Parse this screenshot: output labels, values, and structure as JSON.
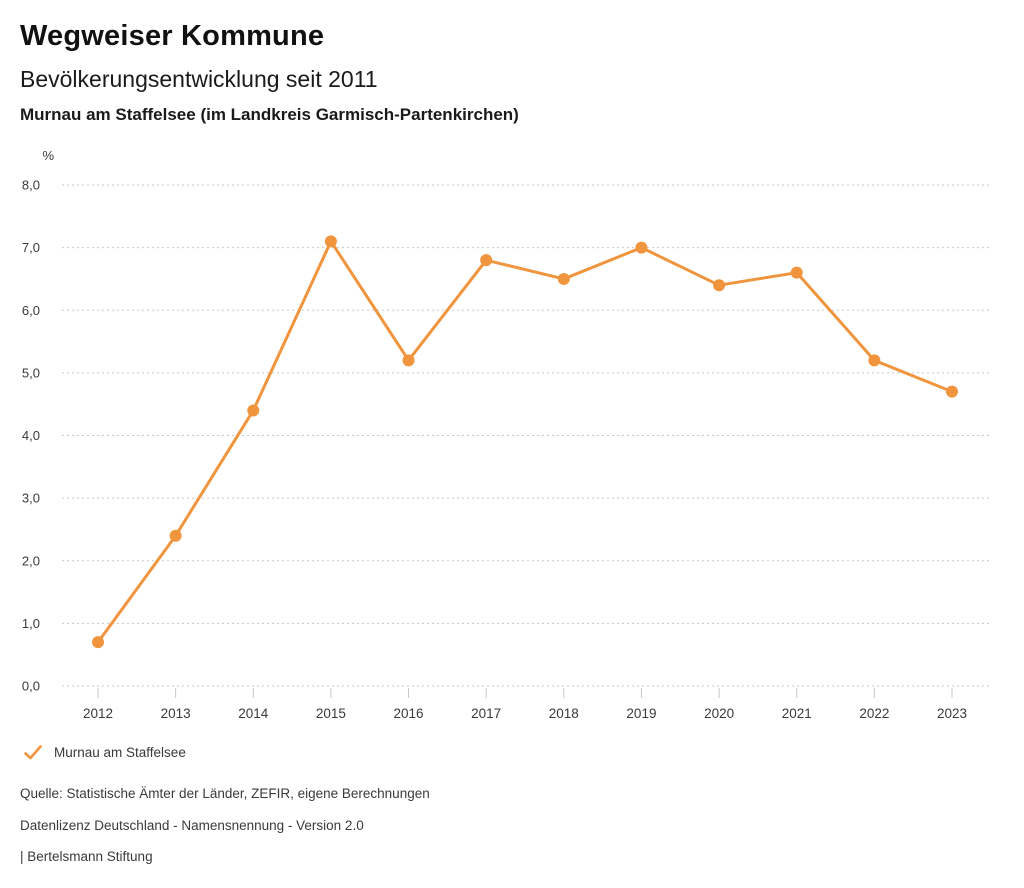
{
  "header": {
    "title": "Wegweiser Kommune",
    "subtitle": "Bevölkerungsentwicklung seit 2011",
    "region": "Murnau am Staffelsee (im Landkreis Garmisch-Partenkirchen)"
  },
  "chart_data": {
    "type": "line",
    "title": "Bevölkerungsentwicklung seit 2011",
    "subtitle": "Murnau am Staffelsee (im Landkreis Garmisch-Partenkirchen)",
    "xlabel": "",
    "ylabel": "%",
    "categories": [
      "2012",
      "2013",
      "2014",
      "2015",
      "2016",
      "2017",
      "2018",
      "2019",
      "2020",
      "2021",
      "2022",
      "2023"
    ],
    "series": [
      {
        "name": "Murnau am Staffelsee",
        "color": "#F0953E",
        "values": [
          0.7,
          2.4,
          4.4,
          7.1,
          5.2,
          6.8,
          6.5,
          7.0,
          6.4,
          6.6,
          5.2,
          4.7
        ]
      }
    ],
    "ylim": [
      0.0,
      8.0
    ],
    "ytick_step": 1.0,
    "ytick_labels": [
      "0,0",
      "1,0",
      "2,0",
      "3,0",
      "4,0",
      "5,0",
      "6,0",
      "7,0",
      "8,0"
    ],
    "unit_label": "%",
    "grid": "horizontal-dotted",
    "legend_position": "bottom-left"
  },
  "legend": {
    "marker": "check-icon",
    "label": "Murnau am Staffelsee"
  },
  "footer": {
    "source": "Quelle: Statistische Ämter der Länder, ZEFIR, eigene Berechnungen",
    "license": "Datenlizenz Deutschland - Namensnennung - Version 2.0",
    "attribution": "| Bertelsmann Stiftung"
  },
  "colors": {
    "series": "#F0953E",
    "grid": "#c8c8c8",
    "tick": "#c8c8c8",
    "axis_text": "#3a3a3a",
    "title_text": "#111111"
  }
}
